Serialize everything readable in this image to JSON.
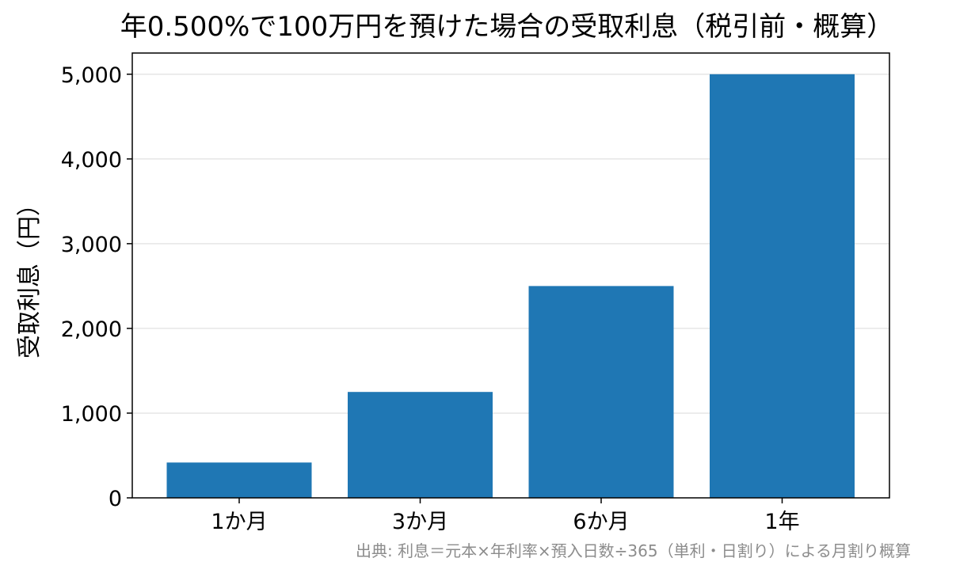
{
  "chart_data": {
    "type": "bar",
    "title": "年0.500%で100万円を預けた場合の受取利息（税引前・概算）",
    "xlabel": "",
    "ylabel": "受取利息（円）",
    "categories": [
      "1か月",
      "3か月",
      "6か月",
      "1年"
    ],
    "values": [
      417,
      1250,
      2500,
      5000
    ],
    "ylim": [
      0,
      5250
    ],
    "yticks": [
      0,
      1000,
      2000,
      3000,
      4000,
      5000
    ],
    "ytick_labels": [
      "0",
      "1,000",
      "2,000",
      "3,000",
      "4,000",
      "5,000"
    ],
    "grid": "y",
    "bar_color": "#1f77b4",
    "source_note": "出典: 利息＝元本×年利率×預入日数÷365（単利・日割り）による月割り概算"
  }
}
